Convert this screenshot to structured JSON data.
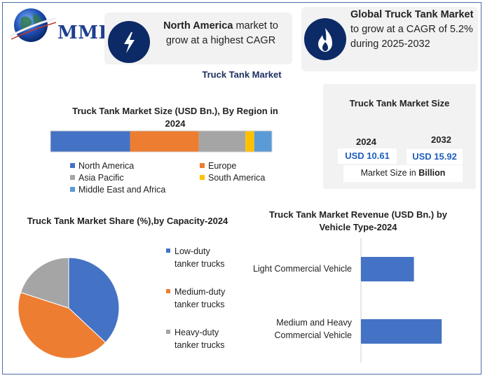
{
  "logo": {
    "text": "MMR",
    "icon": "globe-icon"
  },
  "headline_left": {
    "bold": "North America",
    "rest": " market to grow at a highest CAGR",
    "icon": "lightning-icon"
  },
  "headline_right": {
    "bold": "Global Truck Tank Market",
    "rest": " to grow at a CAGR of 5.2% during 2025-2032",
    "icon": "flame-icon"
  },
  "center_title": "Truck Tank Market",
  "colors": {
    "blue": "#4472c4",
    "orange": "#ed7d31",
    "gray": "#a5a5a5",
    "yellow": "#ffc000",
    "light_blue": "#5b9bd5",
    "navy": "#0c2a66"
  },
  "market_size": {
    "title": "Truck Tank Market Size",
    "years": [
      {
        "year": "2024",
        "value": "USD 10.61"
      },
      {
        "year": "2032",
        "value": "USD 15.92"
      }
    ],
    "note_prefix": "Market Size in ",
    "note_bold": "Billion"
  },
  "chart_data": [
    {
      "type": "bar",
      "orientation": "horizontal-stacked",
      "title": "Truck Tank Market Size (USD Bn.), By Region in 2024",
      "series": [
        {
          "name": "North America",
          "value": 36,
          "color": "#4472c4"
        },
        {
          "name": "Europe",
          "value": 31,
          "color": "#ed7d31"
        },
        {
          "name": "Asia Pacific",
          "value": 21,
          "color": "#a5a5a5"
        },
        {
          "name": "South America",
          "value": 4,
          "color": "#ffc000"
        },
        {
          "name": "Middle East and Africa",
          "value": 8,
          "color": "#5b9bd5"
        }
      ],
      "legend": "bottom"
    },
    {
      "type": "pie",
      "title": "Truck Tank Market Share (%),by Capacity-2024",
      "series": [
        {
          "name": "Low-duty tanker trucks",
          "value": 37,
          "color": "#4472c4"
        },
        {
          "name": "Medium-duty tanker trucks",
          "value": 43,
          "color": "#ed7d31"
        },
        {
          "name": "Heavy-duty tanker trucks",
          "value": 20,
          "color": "#a5a5a5"
        }
      ],
      "legend": "right"
    },
    {
      "type": "bar",
      "orientation": "horizontal",
      "title": "Truck Tank Market Revenue (USD Bn.) by Vehicle Type-2024",
      "categories": [
        "Light Commercial Vehicle",
        "Medium and Heavy Commercial Vehicle"
      ],
      "values": [
        4.2,
        6.4
      ],
      "color": "#4472c4",
      "xlim": [
        0,
        10
      ]
    }
  ]
}
